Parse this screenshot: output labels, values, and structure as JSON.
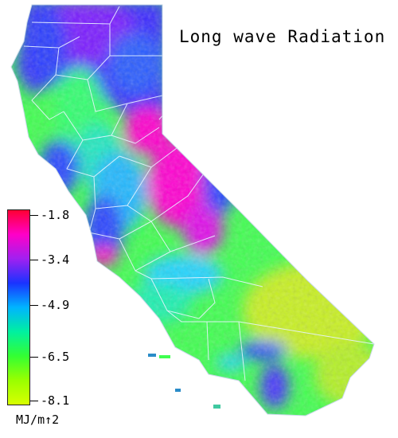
{
  "title": "Long wave Radiation",
  "legend": {
    "units": "MJ/m↑2",
    "ticks": [
      "-1.8",
      "-3.4",
      "-4.9",
      "-6.5",
      "-8.1"
    ],
    "gradient": [
      "#ff0033",
      "#ff00c8",
      "#a020f0",
      "#1a33ff",
      "#00b4ff",
      "#00f0a0",
      "#33ff33",
      "#99ff00",
      "#d8ff00"
    ]
  },
  "colors": {
    "high": "#ff00cc",
    "purple": "#7a1cff",
    "blue": "#2a3cff",
    "cyan": "#22d4ff",
    "teal": "#1af0b0",
    "green": "#40ff50",
    "yellow_green": "#c8f020",
    "boundary": "#e8f4ff"
  }
}
